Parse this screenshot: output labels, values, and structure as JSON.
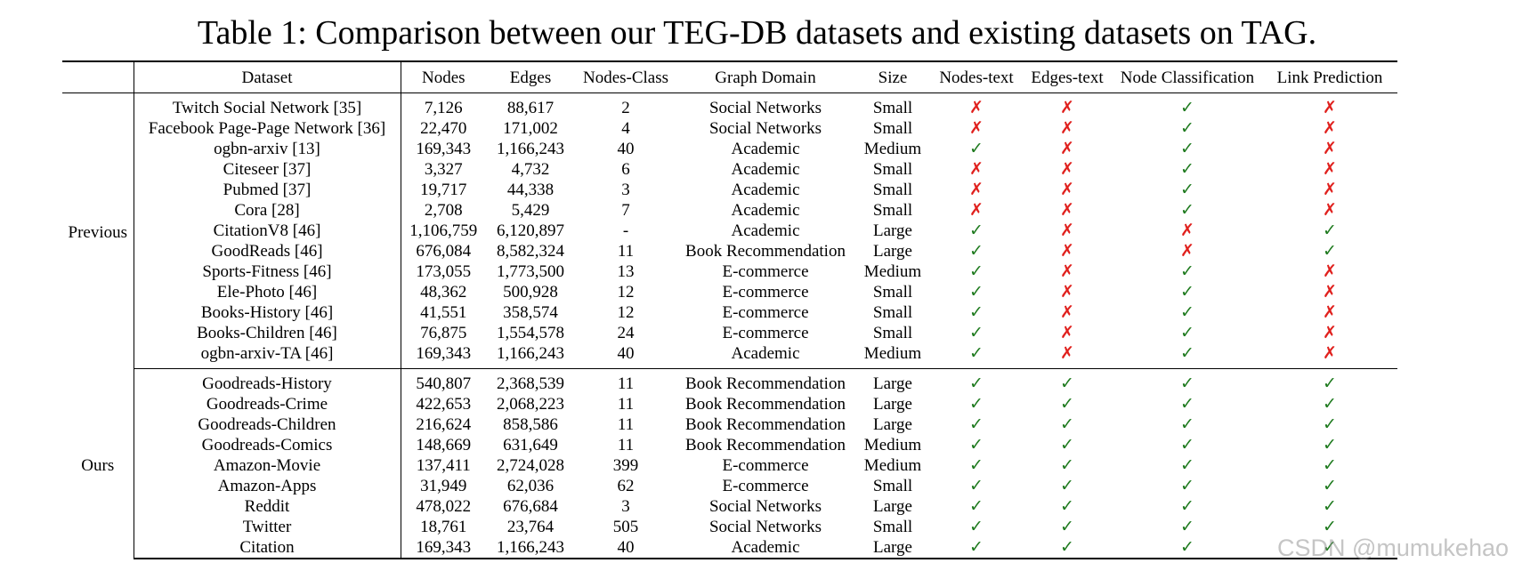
{
  "caption": "Table 1: Comparison between our TEG-DB datasets and existing datasets on TAG.",
  "colors": {
    "check": "#1e7a1e",
    "cross": "#e0201d"
  },
  "columns": [
    "Dataset",
    "Nodes",
    "Edges",
    "Nodes-Class",
    "Graph Domain",
    "Size",
    "Nodes-text",
    "Edges-text",
    "Node Classification",
    "Link Prediction"
  ],
  "symbols": {
    "yes": "✓",
    "no": "✗"
  },
  "groups": [
    {
      "label": "Previous",
      "rows": [
        {
          "dataset": "Twitch Social Network [35]",
          "nodes": "7,126",
          "edges": "88,617",
          "classes": "2",
          "domain": "Social Networks",
          "size": "Small",
          "nodes_text": false,
          "edges_text": false,
          "node_cls": true,
          "link_pred": false
        },
        {
          "dataset": "Facebook Page-Page Network [36]",
          "nodes": "22,470",
          "edges": "171,002",
          "classes": "4",
          "domain": "Social Networks",
          "size": "Small",
          "nodes_text": false,
          "edges_text": false,
          "node_cls": true,
          "link_pred": false
        },
        {
          "dataset": "ogbn-arxiv [13]",
          "nodes": "169,343",
          "edges": "1,166,243",
          "classes": "40",
          "domain": "Academic",
          "size": "Medium",
          "nodes_text": true,
          "edges_text": false,
          "node_cls": true,
          "link_pred": false
        },
        {
          "dataset": "Citeseer [37]",
          "nodes": "3,327",
          "edges": "4,732",
          "classes": "6",
          "domain": "Academic",
          "size": "Small",
          "nodes_text": false,
          "edges_text": false,
          "node_cls": true,
          "link_pred": false
        },
        {
          "dataset": "Pubmed [37]",
          "nodes": "19,717",
          "edges": "44,338",
          "classes": "3",
          "domain": "Academic",
          "size": "Small",
          "nodes_text": false,
          "edges_text": false,
          "node_cls": true,
          "link_pred": false
        },
        {
          "dataset": "Cora [28]",
          "nodes": "2,708",
          "edges": "5,429",
          "classes": "7",
          "domain": "Academic",
          "size": "Small",
          "nodes_text": false,
          "edges_text": false,
          "node_cls": true,
          "link_pred": false
        },
        {
          "dataset": "CitationV8 [46]",
          "nodes": "1,106,759",
          "edges": "6,120,897",
          "classes": "-",
          "domain": "Academic",
          "size": "Large",
          "nodes_text": true,
          "edges_text": false,
          "node_cls": false,
          "link_pred": true
        },
        {
          "dataset": "GoodReads [46]",
          "nodes": "676,084",
          "edges": "8,582,324",
          "classes": "11",
          "domain": "Book Recommendation",
          "size": "Large",
          "nodes_text": true,
          "edges_text": false,
          "node_cls": false,
          "link_pred": true
        },
        {
          "dataset": "Sports-Fitness [46]",
          "nodes": "173,055",
          "edges": "1,773,500",
          "classes": "13",
          "domain": "E-commerce",
          "size": "Medium",
          "nodes_text": true,
          "edges_text": false,
          "node_cls": true,
          "link_pred": false
        },
        {
          "dataset": "Ele-Photo [46]",
          "nodes": "48,362",
          "edges": "500,928",
          "classes": "12",
          "domain": "E-commerce",
          "size": "Small",
          "nodes_text": true,
          "edges_text": false,
          "node_cls": true,
          "link_pred": false
        },
        {
          "dataset": "Books-History [46]",
          "nodes": "41,551",
          "edges": "358,574",
          "classes": "12",
          "domain": "E-commerce",
          "size": "Small",
          "nodes_text": true,
          "edges_text": false,
          "node_cls": true,
          "link_pred": false
        },
        {
          "dataset": "Books-Children [46]",
          "nodes": "76,875",
          "edges": "1,554,578",
          "classes": "24",
          "domain": "E-commerce",
          "size": "Small",
          "nodes_text": true,
          "edges_text": false,
          "node_cls": true,
          "link_pred": false
        },
        {
          "dataset": "ogbn-arxiv-TA [46]",
          "nodes": "169,343",
          "edges": "1,166,243",
          "classes": "40",
          "domain": "Academic",
          "size": "Medium",
          "nodes_text": true,
          "edges_text": false,
          "node_cls": true,
          "link_pred": false
        }
      ]
    },
    {
      "label": "Ours",
      "rows": [
        {
          "dataset": "Goodreads-History",
          "nodes": "540,807",
          "edges": "2,368,539",
          "classes": "11",
          "domain": "Book Recommendation",
          "size": "Large",
          "nodes_text": true,
          "edges_text": true,
          "node_cls": true,
          "link_pred": true
        },
        {
          "dataset": "Goodreads-Crime",
          "nodes": "422,653",
          "edges": "2,068,223",
          "classes": "11",
          "domain": "Book Recommendation",
          "size": "Large",
          "nodes_text": true,
          "edges_text": true,
          "node_cls": true,
          "link_pred": true
        },
        {
          "dataset": "Goodreads-Children",
          "nodes": "216,624",
          "edges": "858,586",
          "classes": "11",
          "domain": "Book Recommendation",
          "size": "Large",
          "nodes_text": true,
          "edges_text": true,
          "node_cls": true,
          "link_pred": true
        },
        {
          "dataset": "Goodreads-Comics",
          "nodes": "148,669",
          "edges": "631,649",
          "classes": "11",
          "domain": "Book Recommendation",
          "size": "Medium",
          "nodes_text": true,
          "edges_text": true,
          "node_cls": true,
          "link_pred": true
        },
        {
          "dataset": "Amazon-Movie",
          "nodes": "137,411",
          "edges": "2,724,028",
          "classes": "399",
          "domain": "E-commerce",
          "size": "Medium",
          "nodes_text": true,
          "edges_text": true,
          "node_cls": true,
          "link_pred": true
        },
        {
          "dataset": "Amazon-Apps",
          "nodes": "31,949",
          "edges": "62,036",
          "classes": "62",
          "domain": "E-commerce",
          "size": "Small",
          "nodes_text": true,
          "edges_text": true,
          "node_cls": true,
          "link_pred": true
        },
        {
          "dataset": "Reddit",
          "nodes": "478,022",
          "edges": "676,684",
          "classes": "3",
          "domain": "Social Networks",
          "size": "Large",
          "nodes_text": true,
          "edges_text": true,
          "node_cls": true,
          "link_pred": true
        },
        {
          "dataset": "Twitter",
          "nodes": "18,761",
          "edges": "23,764",
          "classes": "505",
          "domain": "Social Networks",
          "size": "Small",
          "nodes_text": true,
          "edges_text": true,
          "node_cls": true,
          "link_pred": true
        },
        {
          "dataset": "Citation",
          "nodes": "169,343",
          "edges": "1,166,243",
          "classes": "40",
          "domain": "Academic",
          "size": "Large",
          "nodes_text": true,
          "edges_text": true,
          "node_cls": true,
          "link_pred": true
        }
      ]
    }
  ],
  "watermark": "CSDN @mumukehao"
}
